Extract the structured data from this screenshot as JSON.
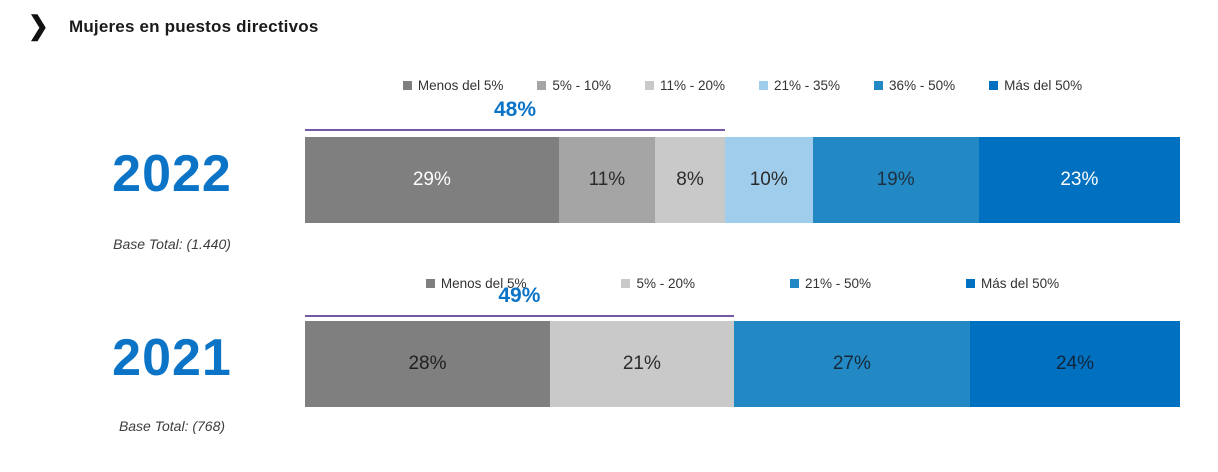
{
  "title": "Mujeres en puestos directivos",
  "colors": {
    "accent_blue": "#0b74c7",
    "bracket_line_purple": "#7659a5",
    "title_text": "#1a1a1a",
    "legend_text": "#333333"
  },
  "chart_data": [
    {
      "type": "bar",
      "orientation": "horizontal-stacked",
      "year": "2022",
      "base_total": "Base Total: (1.440)",
      "legend_position": "top",
      "xlim": [
        0,
        100
      ],
      "bracket": {
        "label": "48%",
        "span_pct": 48
      },
      "segments": [
        {
          "label": "Menos del 5%",
          "value": 29,
          "display": "29%",
          "color": "#7f7f7f",
          "text_color": "#ffffff"
        },
        {
          "label": "5% - 10%",
          "value": 11,
          "display": "11%",
          "color": "#a5a5a5",
          "text_color": "#2b2b2b"
        },
        {
          "label": "11% - 20%",
          "value": 8,
          "display": "8%",
          "color": "#c9c9c9",
          "text_color": "#2b2b2b"
        },
        {
          "label": "21% - 35%",
          "value": 10,
          "display": "10%",
          "color": "#a0cdec",
          "text_color": "#2b2b2b"
        },
        {
          "label": "36% - 50%",
          "value": 19,
          "display": "19%",
          "color": "#2389c4",
          "text_color": "#1e3140"
        },
        {
          "label": "Más del 50%",
          "value": 23,
          "display": "23%",
          "color": "#0070c0",
          "text_color": "#ffffff"
        }
      ]
    },
    {
      "type": "bar",
      "orientation": "horizontal-stacked",
      "year": "2021",
      "base_total": "Base Total: (768)",
      "legend_position": "top",
      "xlim": [
        0,
        100
      ],
      "bracket": {
        "label": "49%",
        "span_pct": 49
      },
      "segments": [
        {
          "label": "Menos del 5%",
          "value": 28,
          "display": "28%",
          "color": "#7f7f7f",
          "text_color": "#1f1f1f"
        },
        {
          "label": "5% - 20%",
          "value": 21,
          "display": "21%",
          "color": "#c9c9c9",
          "text_color": "#2b2b2b"
        },
        {
          "label": "21% - 50%",
          "value": 27,
          "display": "27%",
          "color": "#2389c4",
          "text_color": "#16293a"
        },
        {
          "label": "Más del 50%",
          "value": 24,
          "display": "24%",
          "color": "#0070c0",
          "text_color": "#10263c"
        }
      ]
    }
  ]
}
